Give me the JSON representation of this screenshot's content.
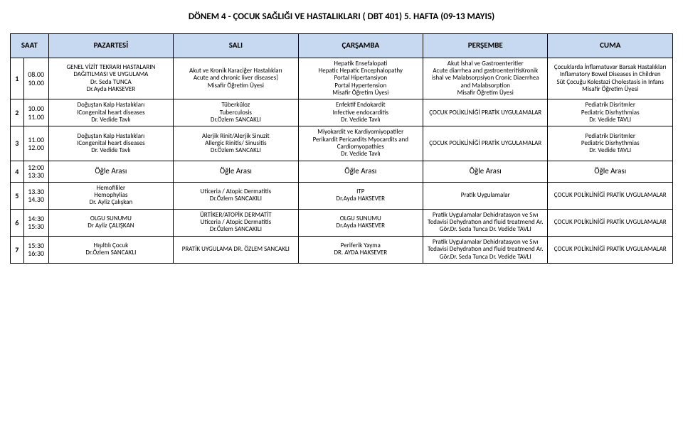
{
  "title": "DÖNEM 4 - ÇOCUK SAĞLIĞI VE HASTALIKLARI  ( DBT 401) 5.  HAFTA (09-13 MAYIS)",
  "headers": {
    "h0": "SAAT",
    "h1": "PAZARTESİ",
    "h2": "SALI",
    "h3": "ÇARŞAMBA",
    "h4": "PERŞEMBE",
    "h5": "CUMA"
  },
  "rows": {
    "r1": {
      "n": "1",
      "t": "08.00 10.00",
      "mon": "GENEL VİZİT TEKRARI HASTALARIN DAĞITILMASI VE UYGULAMA\nDr. Seda TUNCA\nDr.Ayda HAKSEVER",
      "tue": "Akut ve Kronik Karaciğer Hastalıkları\nAcute and chronic liver diseases]\nMisafir Öğretim Üyesi",
      "wed": "Hepatik Ensefalopati\nHepatic  Hepatic Encephalopathy\nPortal Hipertansiyon\nPortal Hypertension\nMisafir Öğretim Üyesi",
      "thu": "Akut İshal ve Gastroenteritler\nAcute diarrhea and gastroenteritisKronik ishal ve Malabsorpsiyon Cronic Diaerrhea and Malabsorption\nMisafir Öğretim Üyesi",
      "fri": "Çocuklarda İnflamatuvar Barsak Hastalıkları\nInflamatory Bowel Diseases in Children\nSüt Çocuğu Kolestazi               Cholestasis in Infans\nMisafir Öğretim Üyesi"
    },
    "r2": {
      "n": "2",
      "t": "10.00 11.00",
      "mon": "Doğuştan Kalp Hastalıkları\nICongenital heart diseases\nDr. Vedide Tavlı",
      "tue": "Tüberküloz\nTuberculosis\nDr.Özlem SANCAKLI",
      "wed": "Enfektif Endokardit\nInfective endocarditis\nDr. Vedide Tavlı",
      "thu": "ÇOCUK POLİKLİNİĞİ PRATİK UYGULAMALAR",
      "fri": "Pediatrik Disritmler\nPediatric Disrhythmias\nDr. Vedide TAVLI"
    },
    "r3": {
      "n": "3",
      "t": "11.00 12.00",
      "mon": "Doğuştan Kalp Hastalıkları\nICongenital heart diseases\nDr. Vedide Tavlı",
      "tue": "Alerjik Rinit/Alerjik Sinuzit\nAllergic Rinitis/ Sinusitis\nDr.Özlem SANCAKLI",
      "wed": "Miyokardit ve Kardiyomiyopatiler\nPerikardit Pericardits Myocardits and Cardiomyopathies\nDr. Vedide Tavlı",
      "thu": "ÇOCUK POLİKLİNİĞİ PRATİK UYGULAMALAR",
      "fri": "Pediatrik Disritmler\nPediatric Disrhythmias\nDr. Vedide TAVLI"
    },
    "r4": {
      "n": "4",
      "t": "12:00 13:30",
      "mon": "Öğle Arası",
      "tue": "Öğle Arası",
      "wed": "Öğle Arası",
      "thu": "Öğle Arası",
      "fri": "Öğle Arası"
    },
    "r5": {
      "n": "5",
      "t": "13.30 14.30",
      "mon": "Hemofililer\nHemophylias\nDr. Ayliz Çalışkan",
      "tue": "Uticeria / Atopic Dermatitis\nDr.Özlem SANCAKILI",
      "wed": "ITP\nDr.Ayda HAKSEVER",
      "thu": "Pratik Uygulamalar",
      "fri": "ÇOCUK POLİKLİNİĞİ PRATİK UYGULAMALAR"
    },
    "r6": {
      "n": "6",
      "t": "14:30 15:30",
      "mon": "OLGU SUNUMU\nDr Ayliz ÇALIŞKAN",
      "tue": "ÜRTİKER/ATOPİK DERMATİT\nUticeria / Atopic Dermatitis\nDr.Özlem SANCAKILI",
      "wed": "OLGU SUNUMU\nDr.Ayda HAKSEVER",
      "thu": "Pratik Uygulamalar               Dehidratasyon ve Sıvı Tedavisi  Dehydratıon and fluid treatmend               Ar. Gör.Dr. Seda Tunca  Dr. Vedide TAVLI",
      "fri": "ÇOCUK POLİKLİNİĞİ PRATİK UYGULAMALAR"
    },
    "r7": {
      "n": "7",
      "t": "15:30 16:30",
      "mon": "Hışıltılı Çocuk\nDr.Özlem SANCAKLI",
      "tue": "PRATİK UYGULAMA DR. ÖZLEM SANCAKLI",
      "wed": "Periferik Yayma\nDR. AYDA HAKSEVER",
      "thu": "Pratik Uygulamalar               Dehidratasyon ve Sıvı Tedavisi  Dehydratıon and fluid treatmend               Ar. Gör.Dr. Seda Tunca  Dr. Vedide TAVLI",
      "fri": "ÇOCUK POLİKLİNİĞİ PRATİK UYGULAMALAR"
    }
  }
}
